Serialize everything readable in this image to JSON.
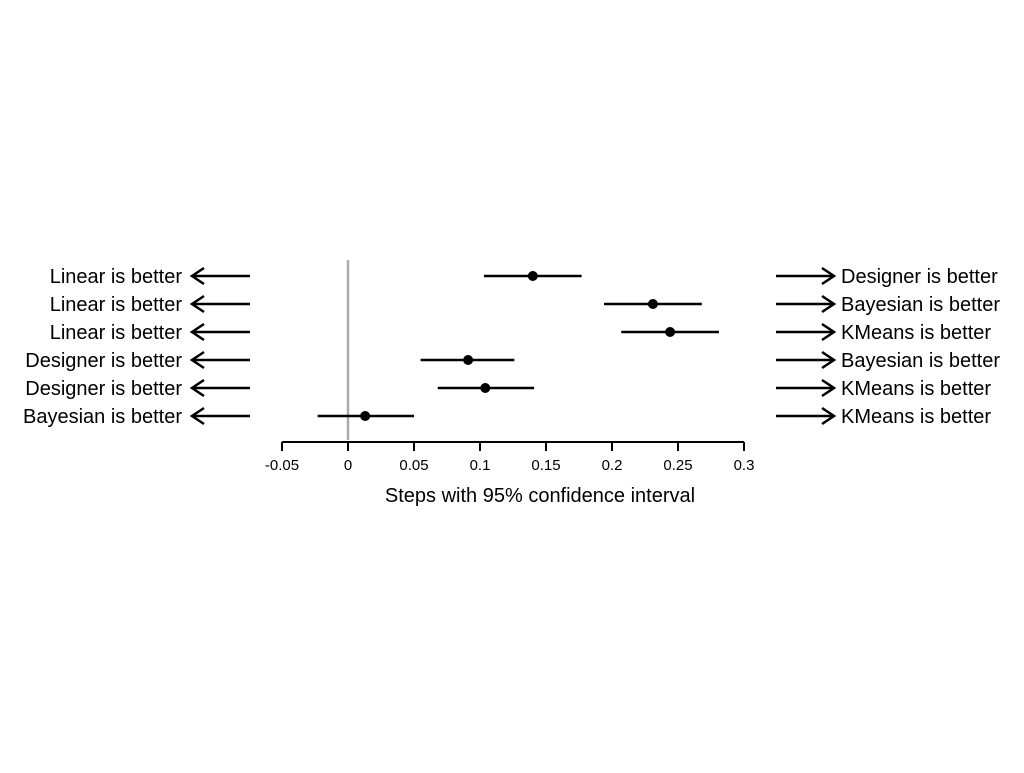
{
  "chart_data": {
    "type": "forest",
    "xlabel": "Steps with 95% confidence interval",
    "xlim": [
      -0.05,
      0.3
    ],
    "x_ticks": [
      -0.05,
      0,
      0.05,
      0.1,
      0.15,
      0.2,
      0.25,
      0.3
    ],
    "x_tick_labels": [
      "-0.05",
      "0",
      "0.05",
      "0.1",
      "0.15",
      "0.2",
      "0.25",
      "0.3"
    ],
    "reference_line": 0,
    "reference_line_color": "#aaaaaa",
    "rows": [
      {
        "left_label": "Linear is better",
        "right_label": "Designer is better",
        "estimate": 0.14,
        "ci_low": 0.103,
        "ci_high": 0.177
      },
      {
        "left_label": "Linear is better",
        "right_label": "Bayesian is better",
        "estimate": 0.231,
        "ci_low": 0.194,
        "ci_high": 0.268
      },
      {
        "left_label": "Linear is better",
        "right_label": "KMeans is better",
        "estimate": 0.244,
        "ci_low": 0.207,
        "ci_high": 0.281
      },
      {
        "left_label": "Designer is better",
        "right_label": "Bayesian is better",
        "estimate": 0.091,
        "ci_low": 0.055,
        "ci_high": 0.126
      },
      {
        "left_label": "Designer is better",
        "right_label": "KMeans is better",
        "estimate": 0.104,
        "ci_low": 0.068,
        "ci_high": 0.141
      },
      {
        "left_label": "Bayesian is better",
        "right_label": "KMeans is better",
        "estimate": 0.013,
        "ci_low": -0.023,
        "ci_high": 0.05
      }
    ]
  }
}
